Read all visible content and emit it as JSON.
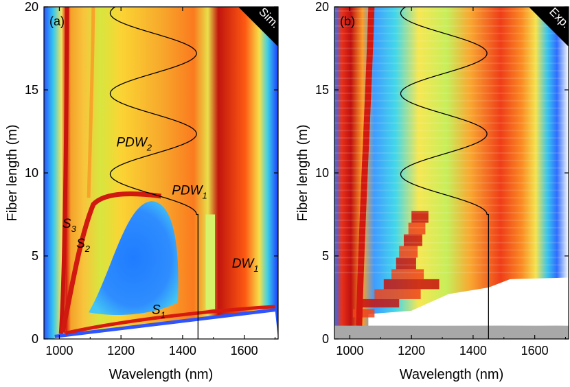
{
  "chart_data": [
    {
      "type": "heatmap",
      "panel_label": "(a)",
      "corner_label": "Sim.",
      "xlabel": "Wavelength (nm)",
      "ylabel": "Fiber length (m)",
      "xlim": [
        950,
        1710
      ],
      "ylim": [
        0,
        20
      ],
      "xticks": [
        1000,
        1200,
        1400,
        1600
      ],
      "yticks": [
        0,
        5,
        10,
        15,
        20
      ],
      "annotations": [
        {
          "base": "S",
          "sub": "3",
          "x": 1010,
          "y": 6.7
        },
        {
          "base": "S",
          "sub": "2",
          "x": 1055,
          "y": 5.5
        },
        {
          "base": "S",
          "sub": "1",
          "x": 1300,
          "y": 1.5
        },
        {
          "base": "PDW",
          "sub": "2",
          "x": 1185,
          "y": 11.6
        },
        {
          "base": "PDW",
          "sub": "1",
          "x": 1365,
          "y": 8.7
        },
        {
          "base": "DW",
          "sub": "1",
          "x": 1560,
          "y": 4.3
        }
      ],
      "overlay_curve": {
        "z_start": 7.5,
        "z_end": 20,
        "center": 1305,
        "amplitude": 140,
        "period": 4.85,
        "vertical_line_x": 1450
      }
    },
    {
      "type": "heatmap",
      "panel_label": "(b)",
      "corner_label": "Exp.",
      "xlabel": "Wavelength (nm)",
      "ylabel": "Fiber length (m)",
      "xlim": [
        950,
        1710
      ],
      "ylim": [
        0,
        20
      ],
      "xticks": [
        1000,
        1200,
        1400,
        1600
      ],
      "yticks": [
        0,
        5,
        10,
        15,
        20
      ],
      "annotations": [],
      "overlay_curve": {
        "z_start": 7.5,
        "z_end": 20,
        "center": 1305,
        "amplitude": 140,
        "period": 4.85,
        "vertical_line_x": 1450
      }
    }
  ]
}
